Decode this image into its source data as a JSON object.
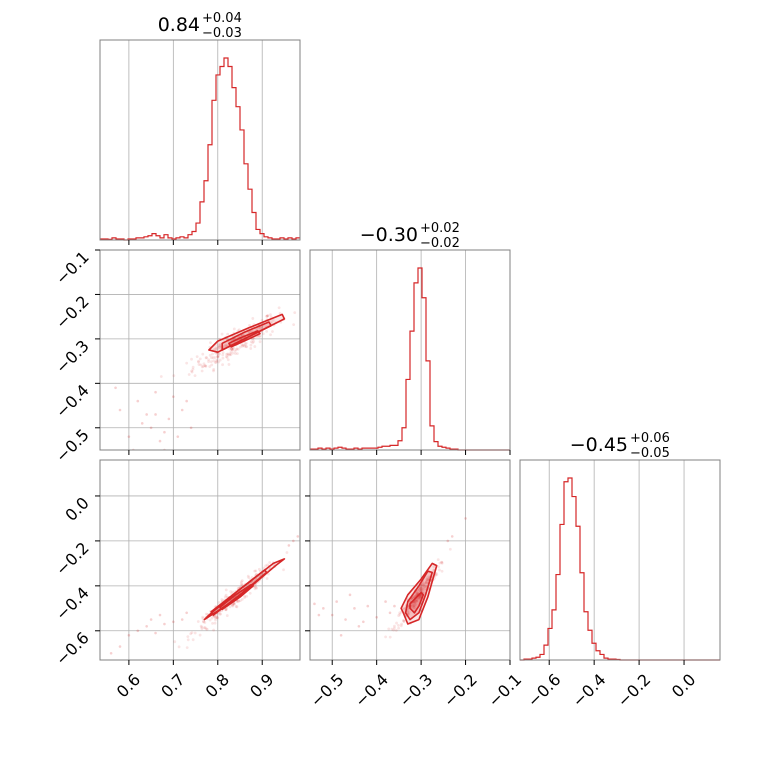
{
  "colors": {
    "accent": "#d62728",
    "grid": "#b0b0b0",
    "frame": "#808080"
  },
  "chart_data": {
    "type": "corner",
    "color": "#d62728",
    "grid": true,
    "titles": [
      {
        "main": "0.84",
        "plus": "+0.04",
        "minus": "−0.03"
      },
      {
        "main": "−0.30",
        "plus": "+0.02",
        "minus": "−0.02"
      },
      {
        "main": "−0.45",
        "plus": "+0.06",
        "minus": "−0.05"
      }
    ],
    "params": [
      {
        "range": [
          0.535,
          0.985
        ],
        "ticks": [
          0.6,
          0.7,
          0.8,
          0.9
        ],
        "tick_labels": [
          "0.6",
          "0.7",
          "0.8",
          "0.9"
        ]
      },
      {
        "range": [
          -0.55,
          -0.1
        ],
        "ticks": [
          -0.5,
          -0.4,
          -0.3,
          -0.2,
          -0.1
        ],
        "tick_labels": [
          "−0.5",
          "−0.4",
          "−0.3",
          "−0.2",
          "−0.1"
        ]
      },
      {
        "range": [
          -0.73,
          0.16
        ],
        "ticks": [
          -0.6,
          -0.4,
          -0.2,
          0.0
        ],
        "tick_labels": [
          "−0.6",
          "−0.4",
          "−0.2",
          "0.0"
        ]
      }
    ],
    "histograms": [
      {
        "bin_start": 0.535,
        "bin_width": 0.009,
        "counts": [
          0.5,
          0.5,
          0.3,
          1,
          0.5,
          0.5,
          0,
          0.5,
          0.5,
          1,
          1,
          1.5,
          2,
          3,
          2,
          1,
          2.5,
          1,
          0.5,
          1,
          1.5,
          1,
          2.5,
          4,
          8,
          18,
          28,
          45,
          66,
          78,
          82,
          86,
          82,
          72,
          63,
          52,
          36,
          24,
          13,
          5,
          3,
          1.5,
          1,
          0.5,
          0.5,
          1,
          0.5,
          1,
          0.5,
          1
        ]
      },
      {
        "bin_start": -0.55,
        "bin_width": 0.009,
        "counts": [
          0.5,
          0.5,
          1,
          0.5,
          1,
          0.5,
          1,
          1.5,
          1,
          0.5,
          0.5,
          1,
          0.5,
          1,
          1,
          1,
          1,
          1.5,
          2,
          2,
          2.5,
          2.5,
          5,
          12,
          38,
          64,
          90,
          98,
          82,
          48,
          13,
          4.5,
          2,
          1.5,
          1,
          0.5,
          0.5,
          0,
          0,
          0,
          0,
          0,
          0,
          0,
          0,
          0,
          0,
          0,
          0,
          0
        ]
      },
      {
        "bin_start": -0.73,
        "bin_width": 0.0178,
        "counts": [
          0,
          0.5,
          0.5,
          1,
          1.5,
          3,
          8,
          17,
          27,
          46,
          73,
          96,
          98,
          88,
          72,
          47,
          26,
          16,
          9,
          5,
          3,
          1,
          0.5,
          0.5,
          0.3,
          0,
          0,
          0,
          0,
          0,
          0,
          0,
          0,
          0,
          0,
          0,
          0,
          0,
          0,
          0,
          0,
          0,
          0,
          0,
          0,
          0,
          0,
          0,
          0,
          0
        ]
      }
    ],
    "joint": [
      {
        "x": 0,
        "y": 1,
        "core": [
          0.84,
          -0.31
        ],
        "corr_slope": 0.55,
        "spread": [
          0.03,
          0.015
        ],
        "contours": [
          [
            [
              0.8,
              -0.33
            ],
            [
              0.87,
              -0.295
            ],
            [
              0.95,
              -0.255
            ],
            [
              0.945,
              -0.245
            ],
            [
              0.87,
              -0.275
            ],
            [
              0.8,
              -0.305
            ],
            [
              0.78,
              -0.325
            ]
          ],
          [
            [
              0.81,
              -0.325
            ],
            [
              0.87,
              -0.295
            ],
            [
              0.92,
              -0.27
            ],
            [
              0.915,
              -0.262
            ],
            [
              0.86,
              -0.285
            ],
            [
              0.81,
              -0.31
            ]
          ],
          [
            [
              0.83,
              -0.318
            ],
            [
              0.87,
              -0.3
            ],
            [
              0.895,
              -0.288
            ],
            [
              0.89,
              -0.282
            ],
            [
              0.85,
              -0.298
            ],
            [
              0.825,
              -0.31
            ]
          ]
        ],
        "outliers": [
          [
            0.57,
            -0.41
          ],
          [
            0.58,
            -0.46
          ],
          [
            0.6,
            -0.52
          ],
          [
            0.62,
            -0.44
          ],
          [
            0.63,
            -0.49
          ],
          [
            0.65,
            -0.5
          ],
          [
            0.66,
            -0.47
          ],
          [
            0.67,
            -0.53
          ],
          [
            0.68,
            -0.55
          ],
          [
            0.69,
            -0.48
          ],
          [
            0.7,
            -0.43
          ],
          [
            0.71,
            -0.52
          ],
          [
            0.72,
            -0.46
          ],
          [
            0.66,
            -0.42
          ],
          [
            0.64,
            -0.47
          ],
          [
            0.74,
            -0.5
          ],
          [
            0.61,
            -0.55
          ],
          [
            0.68,
            -0.51
          ],
          [
            0.73,
            -0.44
          ]
        ]
      },
      {
        "x": 0,
        "y": 2,
        "core": [
          0.84,
          -0.45
        ],
        "corr_slope": 1.6,
        "spread": [
          0.03,
          0.02
        ],
        "contours": [
          [
            [
              0.77,
              -0.55
            ],
            [
              0.84,
              -0.46
            ],
            [
              0.93,
              -0.31
            ],
            [
              0.95,
              -0.28
            ],
            [
              0.925,
              -0.3
            ],
            [
              0.84,
              -0.43
            ],
            [
              0.78,
              -0.53
            ]
          ],
          [
            [
              0.79,
              -0.53
            ],
            [
              0.85,
              -0.44
            ],
            [
              0.91,
              -0.34
            ],
            [
              0.905,
              -0.33
            ],
            [
              0.84,
              -0.43
            ],
            [
              0.785,
              -0.515
            ]
          ],
          [
            [
              0.81,
              -0.505
            ],
            [
              0.85,
              -0.45
            ],
            [
              0.88,
              -0.4
            ],
            [
              0.875,
              -0.395
            ],
            [
              0.84,
              -0.44
            ],
            [
              0.805,
              -0.495
            ]
          ]
        ],
        "outliers": [
          [
            0.56,
            -0.7
          ],
          [
            0.58,
            -0.67
          ],
          [
            0.6,
            -0.62
          ],
          [
            0.62,
            -0.6
          ],
          [
            0.64,
            -0.58
          ],
          [
            0.66,
            -0.61
          ],
          [
            0.68,
            -0.57
          ],
          [
            0.7,
            -0.56
          ],
          [
            0.72,
            -0.55
          ],
          [
            0.73,
            -0.52
          ],
          [
            0.65,
            -0.55
          ],
          [
            0.67,
            -0.53
          ],
          [
            0.98,
            -0.18
          ],
          [
            0.96,
            -0.22
          ],
          [
            0.97,
            -0.2
          ]
        ]
      },
      {
        "x": 1,
        "y": 2,
        "core": [
          -0.31,
          -0.45
        ],
        "corr_slope": 2.6,
        "spread": [
          0.015,
          0.02
        ],
        "contours": [
          [
            [
              -0.34,
              -0.52
            ],
            [
              -0.33,
              -0.57
            ],
            [
              -0.305,
              -0.55
            ],
            [
              -0.285,
              -0.45
            ],
            [
              -0.265,
              -0.31
            ],
            [
              -0.275,
              -0.3
            ],
            [
              -0.3,
              -0.37
            ],
            [
              -0.33,
              -0.44
            ],
            [
              -0.345,
              -0.5
            ]
          ],
          [
            [
              -0.335,
              -0.52
            ],
            [
              -0.325,
              -0.55
            ],
            [
              -0.305,
              -0.52
            ],
            [
              -0.29,
              -0.44
            ],
            [
              -0.275,
              -0.34
            ],
            [
              -0.285,
              -0.335
            ],
            [
              -0.305,
              -0.4
            ],
            [
              -0.33,
              -0.47
            ]
          ],
          [
            [
              -0.325,
              -0.5
            ],
            [
              -0.315,
              -0.52
            ],
            [
              -0.305,
              -0.49
            ],
            [
              -0.295,
              -0.44
            ],
            [
              -0.3,
              -0.43
            ],
            [
              -0.31,
              -0.45
            ],
            [
              -0.325,
              -0.48
            ]
          ]
        ],
        "outliers": [
          [
            -0.54,
            -0.48
          ],
          [
            -0.52,
            -0.5
          ],
          [
            -0.5,
            -0.53
          ],
          [
            -0.49,
            -0.47
          ],
          [
            -0.47,
            -0.55
          ],
          [
            -0.45,
            -0.5
          ],
          [
            -0.43,
            -0.56
          ],
          [
            -0.42,
            -0.49
          ],
          [
            -0.4,
            -0.54
          ],
          [
            -0.38,
            -0.47
          ],
          [
            -0.37,
            -0.52
          ],
          [
            -0.36,
            -0.49
          ],
          [
            -0.53,
            -0.53
          ],
          [
            -0.44,
            -0.58
          ],
          [
            -0.48,
            -0.62
          ],
          [
            -0.46,
            -0.44
          ],
          [
            -0.23,
            -0.18
          ],
          [
            -0.2,
            -0.1
          ],
          [
            -0.24,
            -0.2
          ]
        ]
      }
    ]
  }
}
